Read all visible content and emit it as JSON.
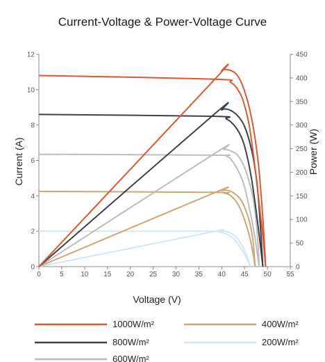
{
  "chart_data": {
    "type": "line",
    "title": "Current-Voltage & Power-Voltage Curve",
    "xlabel": "Voltage (V)",
    "ylabel_left": "Current (A)",
    "ylabel_right": "Power (W)",
    "xlim": [
      0,
      55
    ],
    "ylim_left": [
      0,
      12
    ],
    "ylim_right": [
      0,
      450
    ],
    "xticks": [
      0,
      5,
      10,
      15,
      20,
      25,
      30,
      35,
      40,
      45,
      50,
      55
    ],
    "yticks_left": [
      0,
      2,
      4,
      6,
      8,
      10,
      12
    ],
    "yticks_right": [
      0,
      50,
      100,
      150,
      200,
      250,
      300,
      350,
      400,
      450
    ],
    "grid": false,
    "legend_position": "bottom",
    "series": [
      {
        "name": "1000W/m²",
        "color": "#e0562e",
        "iv": {
          "x": [
            0,
            38,
            42,
            44,
            45,
            46,
            47,
            48,
            48.8,
            49.3,
            49.6
          ],
          "y": [
            10.8,
            10.6,
            10.4,
            9.8,
            9.1,
            8,
            6.2,
            4,
            2.2,
            0.9,
            0
          ]
        },
        "pv": {
          "x": [
            0,
            38,
            40,
            41.5,
            43,
            44,
            45,
            46,
            47,
            48,
            48.8,
            49.3,
            49.6
          ],
          "y": [
            0,
            392,
            415,
            417,
            410,
            396,
            372,
            338,
            290,
            220,
            130,
            55,
            0
          ]
        }
      },
      {
        "name": "800W/m²",
        "color": "#3b4148",
        "iv": {
          "x": [
            0,
            38,
            41,
            43,
            44.5,
            45.5,
            46.5,
            47.3,
            48,
            48.6,
            49
          ],
          "y": [
            8.6,
            8.5,
            8.35,
            7.9,
            7.2,
            6.3,
            5,
            3.6,
            2.2,
            0.9,
            0
          ]
        },
        "pv": {
          "x": [
            0,
            38,
            40,
            41,
            42.5,
            44,
            45,
            46,
            47,
            47.8,
            48.5,
            49
          ],
          "y": [
            0,
            320,
            332,
            334,
            328,
            314,
            297,
            268,
            225,
            170,
            80,
            0
          ]
        }
      },
      {
        "name": "600W/m²",
        "color": "#bcbcbf",
        "iv": {
          "x": [
            0,
            38,
            41,
            42.5,
            44,
            45,
            45.8,
            46.6,
            47.3,
            47.8,
            48.2
          ],
          "y": [
            6.35,
            6.3,
            6.25,
            5.9,
            5.2,
            4.5,
            3.6,
            2.6,
            1.6,
            0.7,
            0
          ]
        },
        "pv": {
          "x": [
            0,
            38,
            40.5,
            42,
            43.5,
            45,
            46,
            46.8,
            47.5,
            48,
            48.2
          ],
          "y": [
            0,
            237,
            248,
            245,
            236,
            210,
            180,
            148,
            100,
            40,
            0
          ]
        }
      },
      {
        "name": "400W/m²",
        "color": "#c9a878",
        "iv": {
          "x": [
            0,
            38,
            40.5,
            42,
            43.5,
            44.5,
            45.3,
            46,
            46.6,
            47,
            47.3
          ],
          "y": [
            4.25,
            4.2,
            4.15,
            4,
            3.55,
            3,
            2.4,
            1.8,
            1.1,
            0.5,
            0
          ]
        },
        "pv": {
          "x": [
            0,
            38,
            40,
            41,
            42.5,
            44,
            45,
            46,
            46.7,
            47.1,
            47.3
          ],
          "y": [
            0,
            155,
            161,
            162,
            157,
            144,
            126,
            98,
            65,
            28,
            0
          ]
        }
      },
      {
        "name": "200W/m²",
        "color": "#d4e6f4",
        "iv": {
          "x": [
            0,
            37,
            39.5,
            41,
            42.5,
            43.5,
            44.3,
            45,
            45.6,
            46,
            46.3
          ],
          "y": [
            2,
            2,
            1.95,
            1.85,
            1.6,
            1.3,
            1,
            0.7,
            0.4,
            0.15,
            0
          ]
        },
        "pv": {
          "x": [
            0,
            37,
            39,
            40,
            41.5,
            43,
            44,
            45,
            45.7,
            46.1,
            46.3
          ],
          "y": [
            0,
            72,
            76,
            76,
            73,
            64,
            52,
            35,
            18,
            6,
            0
          ]
        }
      }
    ]
  }
}
